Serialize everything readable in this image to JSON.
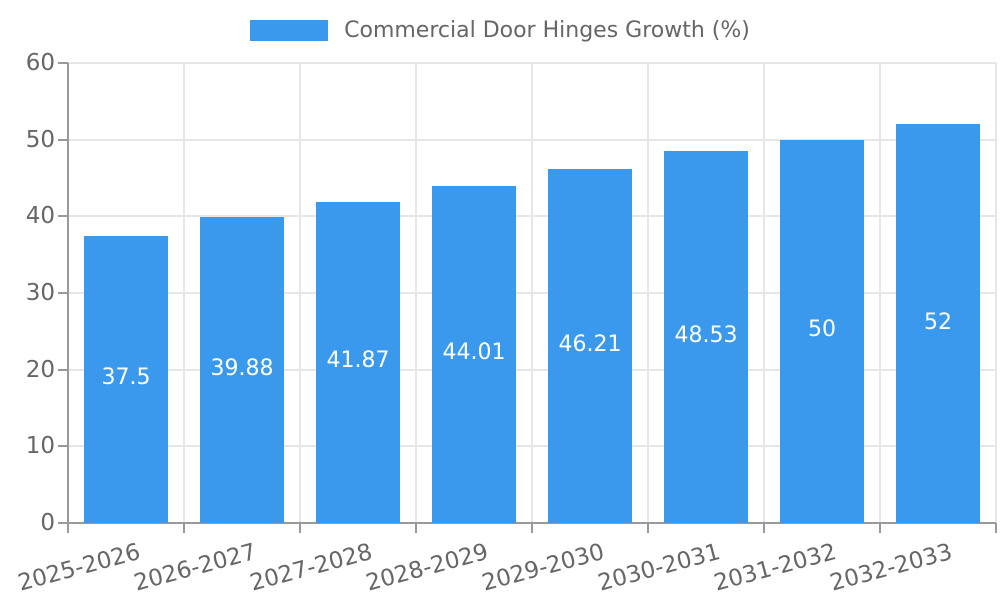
{
  "legend": {
    "label": "Commercial Door Hinges Growth (%)"
  },
  "colors": {
    "bar": "#3A99EC",
    "grid": "#E6E6E6",
    "axis": "#999999",
    "text": "#666666",
    "value_label": "#FFFFFF",
    "background": "#FFFFFF"
  },
  "chart_data": {
    "type": "bar",
    "title": "Commercial Door Hinges Growth (%)",
    "series_name": "Commercial Door Hinges Growth (%)",
    "categories": [
      "2025-2026",
      "2026-2027",
      "2027-2028",
      "2028-2029",
      "2029-2030",
      "2030-2031",
      "2031-2032",
      "2032-2033"
    ],
    "values": [
      37.5,
      39.88,
      41.87,
      44.01,
      46.21,
      48.53,
      50,
      52
    ],
    "value_labels": [
      "37.5",
      "39.88",
      "41.87",
      "44.01",
      "46.21",
      "48.53",
      "50",
      "52"
    ],
    "xlabel": "",
    "ylabel": "",
    "ylim": [
      0,
      60
    ],
    "yticks": [
      0,
      10,
      20,
      30,
      40,
      50,
      60
    ],
    "grid": true,
    "legend_position": "top"
  }
}
